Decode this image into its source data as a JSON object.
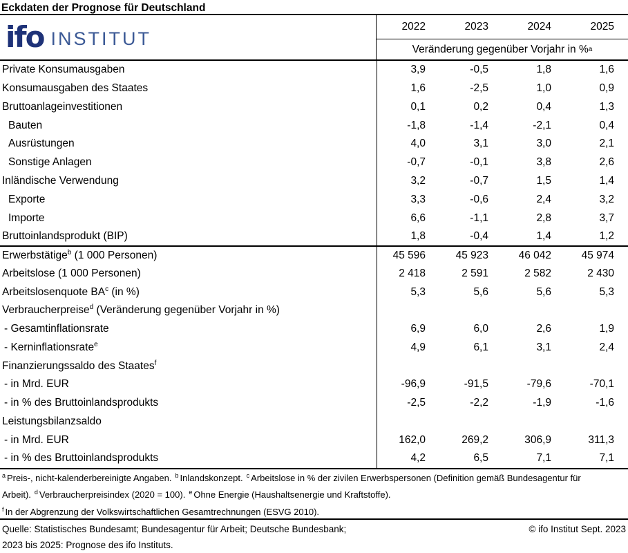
{
  "title": "Eckdaten der Prognose für Deutschland",
  "logo": {
    "ifo": "ifo",
    "institut": "INSTITUT"
  },
  "colors": {
    "logo_dark": "#1e3278",
    "logo_light": "#3c5a96",
    "text": "#000000"
  },
  "table": {
    "years": [
      "2022",
      "2023",
      "2024",
      "2025"
    ],
    "subheader": "Veränderung gegenüber Vorjahr in %",
    "subheader_sup": "a",
    "rows": [
      {
        "label": "Private Konsumausgaben",
        "sup": "",
        "label_post": "",
        "indent": false,
        "dash": false,
        "separator": false,
        "values": [
          "3,9",
          "-0,5",
          "1,8",
          "1,6"
        ]
      },
      {
        "label": "Konsumausgaben des Staates",
        "sup": "",
        "label_post": "",
        "indent": false,
        "dash": false,
        "separator": false,
        "values": [
          "1,6",
          "-2,5",
          "1,0",
          "0,9"
        ]
      },
      {
        "label": "Bruttoanlageinvestitionen",
        "sup": "",
        "label_post": "",
        "indent": false,
        "dash": false,
        "separator": false,
        "values": [
          "0,1",
          "0,2",
          "0,4",
          "1,3"
        ]
      },
      {
        "label": "Bauten",
        "sup": "",
        "label_post": "",
        "indent": true,
        "dash": false,
        "separator": false,
        "values": [
          "-1,8",
          "-1,4",
          "-2,1",
          "0,4"
        ]
      },
      {
        "label": "Ausrüstungen",
        "sup": "",
        "label_post": "",
        "indent": true,
        "dash": false,
        "separator": false,
        "values": [
          "4,0",
          "3,1",
          "3,0",
          "2,1"
        ]
      },
      {
        "label": "Sonstige Anlagen",
        "sup": "",
        "label_post": "",
        "indent": true,
        "dash": false,
        "separator": false,
        "values": [
          "-0,7",
          "-0,1",
          "3,8",
          "2,6"
        ]
      },
      {
        "label": "Inländische Verwendung",
        "sup": "",
        "label_post": "",
        "indent": false,
        "dash": false,
        "separator": false,
        "values": [
          "3,2",
          "-0,7",
          "1,5",
          "1,4"
        ]
      },
      {
        "label": "Exporte",
        "sup": "",
        "label_post": "",
        "indent": true,
        "dash": false,
        "separator": false,
        "values": [
          "3,3",
          "-0,6",
          "2,4",
          "3,2"
        ]
      },
      {
        "label": "Importe",
        "sup": "",
        "label_post": "",
        "indent": true,
        "dash": false,
        "separator": false,
        "values": [
          "6,6",
          "-1,1",
          "2,8",
          "3,7"
        ]
      },
      {
        "label": "Bruttoinlandsprodukt (BIP)",
        "sup": "",
        "label_post": "",
        "indent": false,
        "dash": false,
        "separator": true,
        "values": [
          "1,8",
          "-0,4",
          "1,4",
          "1,2"
        ]
      },
      {
        "label": "Erwerbstätige",
        "sup": "b",
        "label_post": " (1 000 Personen)",
        "indent": false,
        "dash": false,
        "separator": false,
        "values": [
          "45 596",
          "45 923",
          "46 042",
          "45 974"
        ]
      },
      {
        "label": "Arbeitslose (1 000 Personen)",
        "sup": "",
        "label_post": "",
        "indent": false,
        "dash": false,
        "separator": false,
        "values": [
          "2 418",
          "2 591",
          "2 582",
          "2 430"
        ]
      },
      {
        "label": "Arbeitslosenquote BA",
        "sup": "c",
        "label_post": " (in %)",
        "indent": false,
        "dash": false,
        "separator": false,
        "values": [
          "5,3",
          "5,6",
          "5,6",
          "5,3"
        ]
      },
      {
        "label": "Verbraucherpreise",
        "sup": "d",
        "label_post": " (Veränderung gegenüber Vorjahr in %)",
        "indent": false,
        "dash": false,
        "separator": false,
        "values": [
          "",
          "",
          "",
          ""
        ]
      },
      {
        "label": "- Gesamtinflationsrate",
        "sup": "",
        "label_post": "",
        "indent": false,
        "dash": true,
        "separator": false,
        "values": [
          "6,9",
          "6,0",
          "2,6",
          "1,9"
        ]
      },
      {
        "label": "- Kerninflationsrate",
        "sup": "e",
        "label_post": "",
        "indent": false,
        "dash": true,
        "separator": false,
        "values": [
          "4,9",
          "6,1",
          "3,1",
          "2,4"
        ]
      },
      {
        "label": "Finanzierungssaldo des Staates",
        "sup": "f",
        "label_post": "",
        "indent": false,
        "dash": false,
        "separator": false,
        "values": [
          "",
          "",
          "",
          ""
        ]
      },
      {
        "label": "- in Mrd. EUR",
        "sup": "",
        "label_post": "",
        "indent": false,
        "dash": true,
        "separator": false,
        "values": [
          "-96,9",
          "-91,5",
          "-79,6",
          "-70,1"
        ]
      },
      {
        "label": "- in % des Bruttoinlandsprodukts",
        "sup": "",
        "label_post": "",
        "indent": false,
        "dash": true,
        "separator": false,
        "values": [
          "-2,5",
          "-2,2",
          "-1,9",
          "-1,6"
        ]
      },
      {
        "label": "Leistungsbilanzsaldo",
        "sup": "",
        "label_post": "",
        "indent": false,
        "dash": false,
        "separator": false,
        "values": [
          "",
          "",
          "",
          ""
        ]
      },
      {
        "label": "- in Mrd. EUR",
        "sup": "",
        "label_post": "",
        "indent": false,
        "dash": true,
        "separator": false,
        "values": [
          "162,0",
          "269,2",
          "306,9",
          "311,3"
        ]
      },
      {
        "label": "- in % des Bruttoinlandsprodukts",
        "sup": "",
        "label_post": "",
        "indent": false,
        "dash": true,
        "separator": false,
        "values": [
          "4,2",
          "6,5",
          "7,1",
          "7,1"
        ]
      }
    ]
  },
  "footnotes": {
    "main": [
      {
        "sup": "a",
        "text": "Preis-, nicht-kalenderbereinigte Angaben."
      },
      {
        "sup": "b",
        "text": "Inlandskonzept."
      },
      {
        "sup": "c",
        "text": "Arbeitslose in % der zivilen Erwerbspersonen (Definition gemäß Bundesagentur für Arbeit)."
      },
      {
        "sup": "d",
        "text": "Verbraucherpreisindex (2020 = 100)."
      },
      {
        "sup": "e",
        "text": "Ohne Energie (Haushaltsenergie und Kraftstoffe)."
      }
    ],
    "last": {
      "sup": "f",
      "text": "In der Abgrenzung der Volkswirtschaftlichen Gesamtrechnungen (ESVG 2010)."
    }
  },
  "source": {
    "line1": "Quelle: Statistisches Bundesamt; Bundesagentur für Arbeit; Deutsche Bundesbank;",
    "line2": "2023 bis 2025: Prognose des ifo Instituts.",
    "copyright": "© ifo Institut Sept. 2023"
  }
}
